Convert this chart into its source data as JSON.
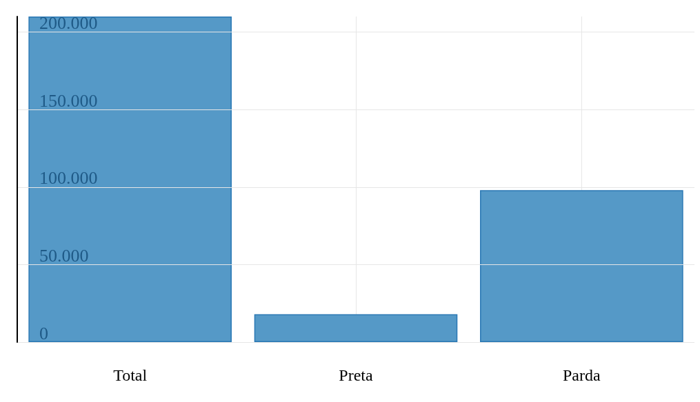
{
  "chart_data": {
    "type": "bar",
    "categories": [
      "Total",
      "Preta",
      "Parda"
    ],
    "values": [
      210000,
      18000,
      98000
    ],
    "color": "#5599c7",
    "ylim": [
      0,
      210000
    ],
    "yticks": [
      {
        "value": 0,
        "label": "0"
      },
      {
        "value": 50000,
        "label": "50.000"
      },
      {
        "value": 100000,
        "label": "100.000"
      },
      {
        "value": 150000,
        "label": "150.000"
      },
      {
        "value": 200000,
        "label": "200.000"
      }
    ],
    "grid": true
  }
}
